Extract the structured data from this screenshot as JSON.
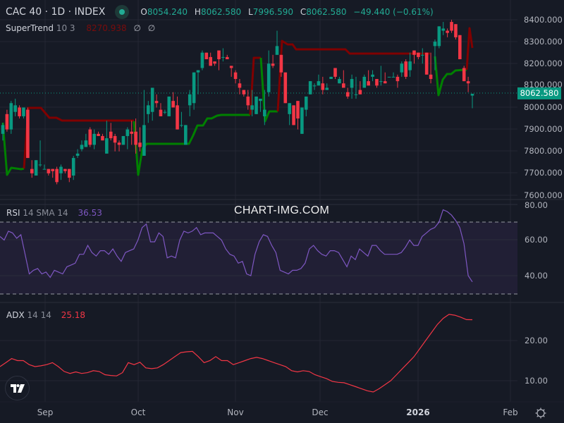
{
  "header": {
    "symbol": "CAC 40 · 1D · INDEX",
    "status_color": "#22ab94",
    "ohlc": {
      "o_label": "O",
      "o": "8054.240",
      "h_label": "H",
      "h": "8062.580",
      "l_label": "L",
      "l": "7996.590",
      "c_label": "C",
      "c": "8062.580",
      "change": "−49.440 (−0.61%)"
    }
  },
  "indicators": {
    "supertrend": {
      "name": "SuperTrend",
      "params": "10 3",
      "value": "8270.938",
      "na1": "∅",
      "na2": "∅"
    },
    "rsi": {
      "name": "RSI",
      "params": "14 SMA 14",
      "value": "36.53"
    },
    "adx": {
      "name": "ADX",
      "params": "14 14",
      "value": "25.18"
    }
  },
  "price_axis": {
    "labels": [
      "8400.000",
      "8300.000",
      "8200.000",
      "8100.000",
      "8000.000",
      "7900.000",
      "7800.000",
      "7700.000",
      "7600.000"
    ],
    "last_price": "8062.580"
  },
  "rsi_axis": {
    "labels": [
      "80.00",
      "60.00",
      "40.00"
    ]
  },
  "adx_axis": {
    "labels": [
      "20.00",
      "10.00"
    ]
  },
  "time_axis": {
    "labels": [
      "Sep",
      "Oct",
      "Nov",
      "Dec",
      "2026",
      "Feb"
    ]
  },
  "watermark": "CHART-IMG.COM",
  "colors": {
    "up": "#089981",
    "down": "#f23645",
    "st_up": "#008000",
    "st_down": "#800000",
    "rsi": "#7e57c2",
    "adx": "#f23645",
    "bg": "#161a25"
  },
  "chart_data": [
    {
      "type": "candlestick",
      "title": "CAC 40 · 1D · INDEX",
      "ylim": [
        7560,
        8450
      ],
      "x_ticks": [
        "Sep",
        "Oct",
        "Nov",
        "Dec",
        "2026",
        "Feb"
      ],
      "ohlc_last": {
        "open": 8054.24,
        "high": 8062.58,
        "low": 7996.59,
        "close": 8062.58,
        "change": -49.44,
        "change_pct": -0.61
      },
      "candles": [
        [
          7880,
          7930,
          7850,
          7920
        ],
        [
          7970,
          7990,
          7890,
          7900
        ],
        [
          7900,
          8030,
          7880,
          8020
        ],
        [
          7980,
          8040,
          7960,
          8010
        ],
        [
          8000,
          8010,
          7950,
          7960
        ],
        [
          7960,
          8000,
          7950,
          8000
        ],
        [
          7990,
          8000,
          7770,
          7770
        ],
        [
          7720,
          7760,
          7680,
          7700
        ],
        [
          7690,
          7760,
          7690,
          7760
        ],
        [
          7740,
          7850,
          7730,
          7740
        ],
        [
          7720,
          7740,
          7720,
          7720
        ],
        [
          7720,
          7720,
          7690,
          7700
        ],
        [
          7720,
          7720,
          7680,
          7710
        ],
        [
          7720,
          7730,
          7650,
          7660
        ],
        [
          7700,
          7740,
          7670,
          7730
        ],
        [
          7720,
          7720,
          7700,
          7710
        ],
        [
          7720,
          7720,
          7660,
          7680
        ],
        [
          7690,
          7780,
          7670,
          7770
        ],
        [
          7780,
          7810,
          7770,
          7790
        ],
        [
          7810,
          7850,
          7800,
          7830
        ],
        [
          7820,
          7880,
          7820,
          7850
        ],
        [
          7900,
          7910,
          7820,
          7830
        ],
        [
          7830,
          7900,
          7810,
          7880
        ],
        [
          7880,
          7890,
          7870,
          7870
        ],
        [
          7870,
          7880,
          7850,
          7850
        ],
        [
          7790,
          7940,
          7790,
          7860
        ],
        [
          7890,
          7930,
          7850,
          7860
        ],
        [
          7870,
          7880,
          7800,
          7840
        ],
        [
          7840,
          7850,
          7800,
          7830
        ],
        [
          7830,
          7870,
          7830,
          7870
        ],
        [
          7870,
          7910,
          7810,
          7900
        ],
        [
          7890,
          7940,
          7830,
          7880
        ],
        [
          7890,
          7950,
          7790,
          7830
        ],
        [
          7840,
          7910,
          7800,
          7820
        ],
        [
          7780,
          8080,
          7780,
          7920
        ],
        [
          7970,
          8030,
          7930,
          8010
        ],
        [
          7980,
          8080,
          7940,
          8090
        ],
        [
          8030,
          8060,
          8000,
          8020
        ],
        [
          7990,
          8020,
          7960,
          7960
        ],
        [
          7980,
          7990,
          7970,
          7980
        ],
        [
          7960,
          8050,
          7960,
          8050
        ],
        [
          8030,
          8070,
          8010,
          8000
        ],
        [
          8010,
          8050,
          7900,
          7900
        ],
        [
          7920,
          7980,
          7910,
          7920
        ],
        [
          7830,
          7910,
          7830,
          7920
        ],
        [
          8010,
          8080,
          7960,
          8060
        ],
        [
          8020,
          8130,
          7990,
          8160
        ],
        [
          8160,
          8140,
          8060,
          8170
        ],
        [
          8180,
          8260,
          8170,
          8250
        ],
        [
          8250,
          8240,
          8220,
          8220
        ],
        [
          8230,
          8250,
          8200,
          8190
        ],
        [
          8210,
          8210,
          8190,
          8200
        ],
        [
          8260,
          8250,
          8170,
          8220
        ],
        [
          8230,
          8270,
          8210,
          8230
        ],
        [
          8230,
          8240,
          8220,
          8220
        ],
        [
          8190,
          8190,
          8140,
          8180
        ],
        [
          8160,
          8170,
          8110,
          8130
        ],
        [
          8110,
          8130,
          8060,
          8090
        ],
        [
          8080,
          8080,
          8050,
          8060
        ],
        [
          8050,
          8080,
          7990,
          8010
        ],
        [
          7990,
          8080,
          7960,
          8010
        ],
        [
          7970,
          8030,
          7970,
          8050
        ],
        [
          8030,
          7980,
          7980,
          8040
        ],
        [
          7960,
          8080,
          7920,
          7990
        ],
        [
          8070,
          8260,
          8050,
          8200
        ],
        [
          8200,
          8240,
          8180,
          8190
        ],
        [
          8240,
          8350,
          8270,
          8280
        ],
        [
          8240,
          8220,
          8140,
          8160
        ],
        [
          8160,
          8160,
          8040,
          8020
        ],
        [
          7970,
          8000,
          7920,
          8020
        ],
        [
          8010,
          8000,
          7980,
          7920
        ],
        [
          8030,
          8010,
          7900,
          7950
        ],
        [
          7880,
          7980,
          7890,
          8000
        ],
        [
          7990,
          8030,
          7960,
          8050
        ],
        [
          8060,
          8120,
          8060,
          8120
        ],
        [
          8100,
          8110,
          8080,
          8100
        ],
        [
          8100,
          8150,
          8100,
          8120
        ],
        [
          8110,
          8140,
          8060,
          8080
        ],
        [
          8080,
          8110,
          8090,
          8090
        ],
        [
          8130,
          8140,
          8130,
          8140
        ],
        [
          8180,
          8160,
          8130,
          8140
        ],
        [
          8110,
          8140,
          8110,
          8130
        ],
        [
          8110,
          8170,
          8100,
          8090
        ],
        [
          8070,
          8090,
          8040,
          8050
        ],
        [
          8090,
          8150,
          8040,
          8130
        ],
        [
          8060,
          8140,
          8040,
          8060
        ],
        [
          8080,
          8120,
          8080,
          8060
        ],
        [
          8090,
          8150,
          8090,
          8140
        ],
        [
          8120,
          8170,
          8100,
          8100
        ],
        [
          8140,
          8170,
          8120,
          8150
        ],
        [
          8130,
          8130,
          8090,
          8100
        ],
        [
          8120,
          8190,
          8100,
          8120
        ],
        [
          8120,
          8160,
          8110,
          8110
        ],
        [
          8140,
          8140,
          8140,
          8140
        ],
        [
          8140,
          8160,
          8140,
          8140
        ],
        [
          8140,
          8150,
          8090,
          8120
        ],
        [
          8160,
          8210,
          8140,
          8200
        ],
        [
          8210,
          8220,
          8130,
          8140
        ],
        [
          8170,
          8250,
          8140,
          8210
        ],
        [
          8260,
          8250,
          8200,
          8240
        ],
        [
          8250,
          8240,
          8220,
          8230
        ],
        [
          8240,
          8270,
          8200,
          8240
        ],
        [
          8250,
          8250,
          8180,
          8150
        ],
        [
          8150,
          8250,
          8110,
          8130
        ],
        [
          8280,
          8310,
          8170,
          8300
        ],
        [
          8280,
          8370,
          8270,
          8370
        ],
        [
          8350,
          8390,
          8330,
          8360
        ],
        [
          8350,
          8360,
          8320,
          8340
        ],
        [
          8390,
          8400,
          8340,
          8350
        ],
        [
          8380,
          8370,
          8310,
          8320
        ],
        [
          8330,
          8320,
          8260,
          8220
        ],
        [
          8180,
          8190,
          8140,
          8120
        ],
        [
          8120,
          8140,
          8070,
          8110
        ],
        [
          8054.24,
          8062.58,
          7996.59,
          8062.58
        ]
      ]
    },
    {
      "type": "line",
      "name": "SuperTrend 10 3",
      "last_value": 8270.938,
      "colors": {
        "uptrend": "#008000",
        "downtrend": "#800000"
      }
    },
    {
      "type": "line",
      "name": "RSI 14 SMA 14",
      "last_value": 36.53,
      "ylim": [
        25,
        82
      ],
      "bands": [
        70,
        30
      ],
      "y_ticks": [
        80,
        60,
        40
      ],
      "values": [
        62,
        60,
        65,
        64,
        61,
        63,
        52,
        41,
        43,
        44,
        41,
        42,
        39,
        43,
        42,
        41,
        45,
        46,
        47,
        52,
        52,
        57,
        53,
        51,
        54,
        54,
        52,
        55,
        51,
        48,
        53,
        54,
        55,
        60,
        67,
        69,
        59,
        59,
        64,
        62,
        50,
        51,
        50,
        60,
        65,
        64,
        65,
        67,
        63,
        64,
        64,
        64,
        62,
        60,
        55,
        52,
        51,
        47,
        48,
        41,
        40,
        52,
        59,
        63,
        62,
        57,
        53,
        43,
        42,
        41,
        43,
        43,
        44,
        47,
        55,
        57,
        54,
        52,
        51,
        54,
        54,
        53,
        49,
        45,
        51,
        49,
        55,
        53,
        51,
        57,
        57,
        54,
        52,
        52,
        52,
        52,
        53,
        56,
        60,
        57,
        57,
        62,
        64,
        66,
        67,
        70,
        77,
        76,
        74,
        71,
        67,
        58,
        40,
        36.53
      ]
    },
    {
      "type": "line",
      "name": "ADX 14 14",
      "last_value": 25.18,
      "ylim": [
        5,
        28
      ],
      "y_ticks": [
        20,
        10
      ],
      "values": [
        13.5,
        14.5,
        15.5,
        15,
        15,
        14,
        13.5,
        13.7,
        14,
        14.5,
        13.5,
        12.3,
        11.8,
        12.2,
        11.8,
        12,
        12.5,
        12.3,
        11.5,
        11.3,
        11.2,
        12,
        14.5,
        14,
        14.6,
        13.2,
        13,
        13.2,
        14,
        15,
        16,
        17,
        17.2,
        17.3,
        16,
        14.5,
        15,
        16,
        15,
        15,
        14,
        14.5,
        15,
        15.5,
        15.8,
        15.5,
        15,
        14.5,
        14,
        13.5,
        12.5,
        12.2,
        12.5,
        12.3,
        11.5,
        11,
        10.5,
        9.8,
        9.6,
        9.5,
        9,
        8.5,
        8,
        7.5,
        7.2,
        8,
        9,
        10,
        11.5,
        13,
        14.5,
        16,
        18,
        20,
        22,
        24,
        25.5,
        26.5,
        26.3,
        25.8,
        25.2,
        25.18
      ]
    }
  ]
}
